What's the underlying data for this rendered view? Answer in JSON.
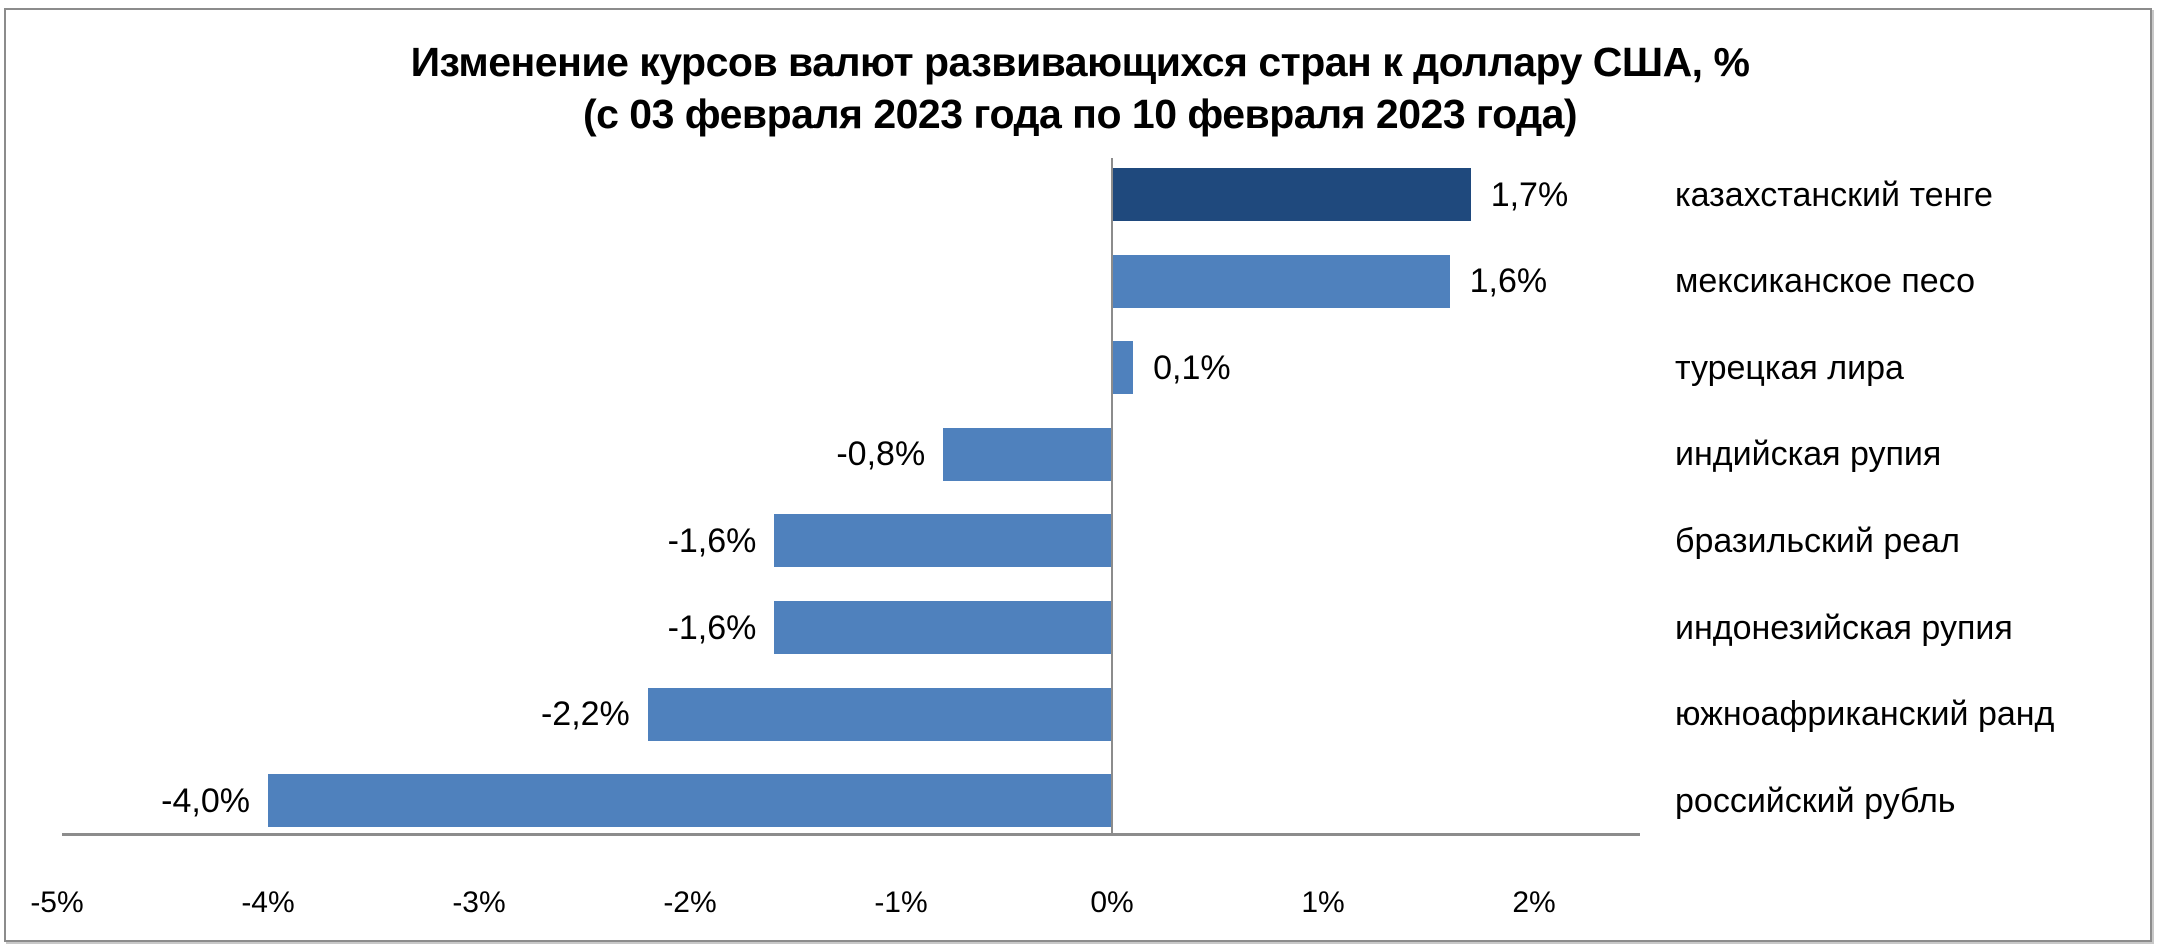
{
  "title": {
    "line1": "Изменение курсов валют развивающихся стран к доллару США, %",
    "line2": "(с 03 февраля 2023 года по 10 февраля 2023 года)"
  },
  "colors": {
    "highlight_bar": "#1f497d",
    "bar": "#4f81bd",
    "axis": "#8c8c8c"
  },
  "bars": [
    {
      "label": "казахстанский тенге",
      "value": 1.7,
      "value_label": "1,7%",
      "highlight": true
    },
    {
      "label": "мексиканское песо",
      "value": 1.6,
      "value_label": "1,6%",
      "highlight": false
    },
    {
      "label": "турецкая лира",
      "value": 0.1,
      "value_label": "0,1%",
      "highlight": false
    },
    {
      "label": "индийская рупия",
      "value": -0.8,
      "value_label": "-0,8%",
      "highlight": false
    },
    {
      "label": "бразильский реал",
      "value": -1.6,
      "value_label": "-1,6%",
      "highlight": false
    },
    {
      "label": "индонезийская рупия",
      "value": -1.6,
      "value_label": "-1,6%",
      "highlight": false
    },
    {
      "label": "южноафриканский ранд",
      "value": -2.2,
      "value_label": "-2,2%",
      "highlight": false
    },
    {
      "label": "российский рубль",
      "value": -4.0,
      "value_label": "-4,0%",
      "highlight": false
    }
  ],
  "x_ticks": [
    "-5%",
    "-4%",
    "-3%",
    "-2%",
    "-1%",
    "0%",
    "1%",
    "2%"
  ],
  "chart_data": {
    "type": "bar",
    "orientation": "horizontal",
    "title": "Изменение курсов валют развивающихся стран к доллару США, % (с 03 февраля 2023 года по 10 февраля 2023 года)",
    "categories": [
      "казахстанский тенге",
      "мексиканское песо",
      "турецкая лира",
      "индийская рупия",
      "бразильский реал",
      "индонезийская рупия",
      "южноафриканский ранд",
      "российский рубль"
    ],
    "values": [
      1.7,
      1.6,
      0.1,
      -0.8,
      -1.6,
      -1.6,
      -2.2,
      -4.0
    ],
    "data_labels": [
      "1,7%",
      "1,6%",
      "0,1%",
      "-0,8%",
      "-1,6%",
      "-1,6%",
      "-2,2%",
      "-4,0%"
    ],
    "xlabel": "",
    "ylabel": "",
    "xlim": [
      -5,
      2
    ],
    "x_tick_labels": [
      "-5%",
      "-4%",
      "-3%",
      "-2%",
      "-1%",
      "0%",
      "1%",
      "2%"
    ],
    "grid": false,
    "legend": null,
    "highlighted_category": "казахстанский тенге"
  }
}
